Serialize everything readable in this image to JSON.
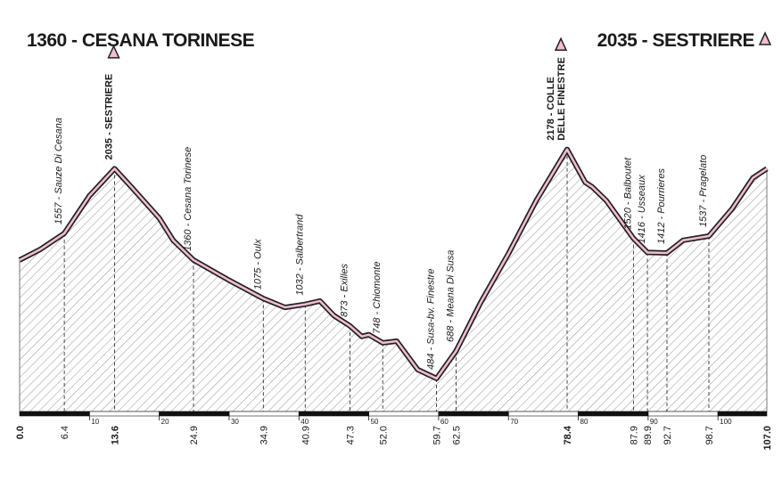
{
  "chart_data": {
    "type": "area",
    "start_title": "1360 - CESANA TORINESE",
    "finish_title": "2035 - SESTRIERE",
    "x": [
      0,
      3,
      6.4,
      10,
      13.6,
      16,
      20,
      22,
      24.9,
      30,
      34.9,
      38,
      40.9,
      43,
      45,
      47.3,
      49,
      50,
      52,
      54,
      57,
      59.7,
      62.5,
      66,
      70,
      74,
      78.4,
      81,
      82,
      84,
      87.9,
      89.9,
      92.7,
      95,
      98.7,
      102,
      105,
      107
    ],
    "values": [
      1360,
      1440,
      1557,
      1835,
      2035,
      1900,
      1670,
      1505,
      1360,
      1210,
      1075,
      1010,
      1032,
      1057,
      950,
      873,
      795,
      808,
      748,
      760,
      550,
      484,
      688,
      1044,
      1407,
      1802,
      2178,
      1934,
      1900,
      1800,
      1520,
      1416,
      1412,
      1506,
      1537,
      1737,
      1967,
      2035
    ],
    "line_color": "#f2bcd2",
    "xlim": [
      0,
      107
    ],
    "ylim": [
      240,
      2400
    ],
    "xticks": [
      10,
      20,
      30,
      40,
      50,
      60,
      70,
      80,
      90,
      100
    ],
    "start_km": {
      "value": 0,
      "label": "0.0"
    },
    "finish_km": {
      "value": 107,
      "label": "107.0"
    },
    "waypoints": [
      {
        "km": 6.4,
        "elevation": 1557,
        "label": "1557 - Sauze Di Cesana",
        "summit": false
      },
      {
        "km": 13.6,
        "elevation": 2035,
        "label": "2035 - SESTRIERE",
        "summit": true
      },
      {
        "km": 24.9,
        "elevation": 1360,
        "label": "1360 - Cesana Torinese",
        "summit": false
      },
      {
        "km": 34.9,
        "elevation": 1075,
        "label": "1075 - Oulx",
        "summit": false
      },
      {
        "km": 40.9,
        "elevation": 1032,
        "label": "1032 - Salbertrand",
        "summit": false
      },
      {
        "km": 47.3,
        "elevation": 873,
        "label": "873 - Exilles",
        "summit": false
      },
      {
        "km": {
          "value": 52,
          "label": "52.0"
        },
        "elevation": 748,
        "label": "748 - Chiomonte",
        "summit": false
      },
      {
        "km": 59.7,
        "elevation": 484,
        "label": "484 - Susa-bv. Finestre",
        "summit": false
      },
      {
        "km": 62.5,
        "elevation": 688,
        "label": "688 - Meana Di Susa",
        "summit": false
      },
      {
        "km": 78.4,
        "elevation": 2178,
        "label": [
          "2178 - COLLE",
          "DELLE FINESTRE"
        ],
        "summit": true
      },
      {
        "km": 87.9,
        "elevation": 1520,
        "label": "1520 - Balboutet",
        "summit": false
      },
      {
        "km": 89.9,
        "elevation": 1416,
        "label": "1416 - Usseaux",
        "summit": false
      },
      {
        "km": 92.7,
        "elevation": 1412,
        "label": "1412 - Pourrieres",
        "summit": false
      },
      {
        "km": 98.7,
        "elevation": 1537,
        "label": "1537 - Pragelato",
        "summit": false
      }
    ]
  }
}
